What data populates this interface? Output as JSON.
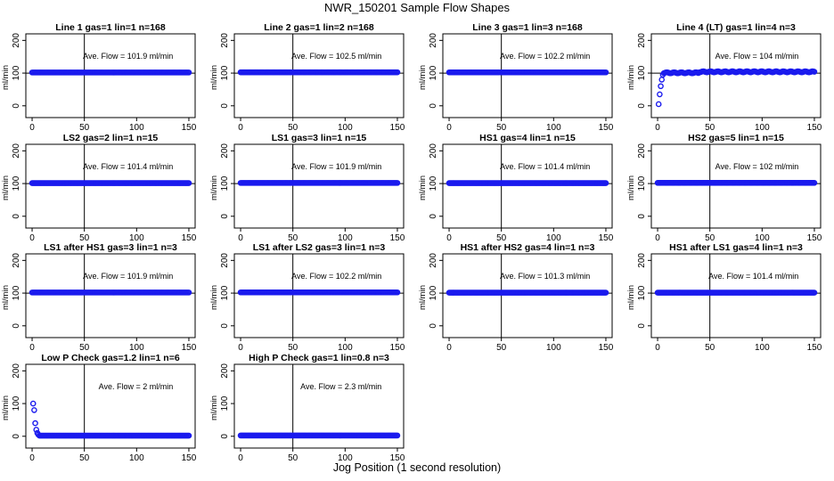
{
  "title": "NWR_150201  Sample Flow Shapes",
  "xlabel": "Jog Position (1 second resolution)",
  "chart_data": [
    {
      "type": "scatter",
      "title": "Line 1 gas=1 lin=1 n=168",
      "annotation": "Ave. Flow = 101.9  ml/min",
      "ylabel": "ml/min",
      "xlim": [
        0,
        150
      ],
      "ylim": [
        0,
        200
      ],
      "xticks": [
        0,
        50,
        100,
        150
      ],
      "yticks": [
        0,
        100,
        200
      ],
      "vline": 50,
      "hline": 100,
      "shape": "flat",
      "level": 101.9
    },
    {
      "type": "scatter",
      "title": "Line 2 gas=1 lin=2 n=168",
      "annotation": "Ave. Flow = 102.5  ml/min",
      "ylabel": "ml/min",
      "xlim": [
        0,
        150
      ],
      "ylim": [
        0,
        200
      ],
      "xticks": [
        0,
        50,
        100,
        150
      ],
      "yticks": [
        0,
        100,
        200
      ],
      "vline": 50,
      "hline": 100,
      "shape": "flat",
      "level": 102.5
    },
    {
      "type": "scatter",
      "title": "Line 3 gas=1 lin=3 n=168",
      "annotation": "Ave. Flow = 102.2  ml/min",
      "ylabel": "ml/min",
      "xlim": [
        0,
        150
      ],
      "ylim": [
        0,
        200
      ],
      "xticks": [
        0,
        50,
        100,
        150
      ],
      "yticks": [
        0,
        100,
        200
      ],
      "vline": 50,
      "hline": 100,
      "shape": "flat",
      "level": 102.2
    },
    {
      "type": "scatter",
      "title": "Line 4 (LT) gas=1 lin=4 n=3",
      "annotation": "Ave. Flow = 104  ml/min",
      "ylabel": "ml/min",
      "xlim": [
        0,
        150
      ],
      "ylim": [
        0,
        200
      ],
      "xticks": [
        0,
        50,
        100,
        150
      ],
      "yticks": [
        0,
        100,
        200
      ],
      "vline": 50,
      "hline": 100,
      "shape": "rise",
      "level": 104,
      "start": [
        [
          1,
          5
        ],
        [
          2,
          35
        ],
        [
          3,
          60
        ],
        [
          4,
          80
        ],
        [
          5,
          95
        ]
      ]
    },
    {
      "type": "scatter",
      "title": "LS2 gas=2 lin=1 n=15",
      "annotation": "Ave. Flow = 101.4  ml/min",
      "ylabel": "ml/min",
      "xlim": [
        0,
        150
      ],
      "ylim": [
        0,
        200
      ],
      "xticks": [
        0,
        50,
        100,
        150
      ],
      "yticks": [
        0,
        100,
        200
      ],
      "vline": 50,
      "hline": 100,
      "shape": "flat",
      "level": 101.4
    },
    {
      "type": "scatter",
      "title": "LS1 gas=3 lin=1 n=15",
      "annotation": "Ave. Flow = 101.9  ml/min",
      "ylabel": "ml/min",
      "xlim": [
        0,
        150
      ],
      "ylim": [
        0,
        200
      ],
      "xticks": [
        0,
        50,
        100,
        150
      ],
      "yticks": [
        0,
        100,
        200
      ],
      "vline": 50,
      "hline": 100,
      "shape": "flat",
      "level": 101.9
    },
    {
      "type": "scatter",
      "title": "HS1 gas=4 lin=1 n=15",
      "annotation": "Ave. Flow = 101.4  ml/min",
      "ylabel": "ml/min",
      "xlim": [
        0,
        150
      ],
      "ylim": [
        0,
        200
      ],
      "xticks": [
        0,
        50,
        100,
        150
      ],
      "yticks": [
        0,
        100,
        200
      ],
      "vline": 50,
      "hline": 100,
      "shape": "flat",
      "level": 101.4
    },
    {
      "type": "scatter",
      "title": "HS2 gas=5 lin=1 n=15",
      "annotation": "Ave. Flow = 102  ml/min",
      "ylabel": "ml/min",
      "xlim": [
        0,
        150
      ],
      "ylim": [
        0,
        200
      ],
      "xticks": [
        0,
        50,
        100,
        150
      ],
      "yticks": [
        0,
        100,
        200
      ],
      "vline": 50,
      "hline": 100,
      "shape": "flat",
      "level": 102
    },
    {
      "type": "scatter",
      "title": "LS1 after HS1 gas=3 lin=1 n=3",
      "annotation": "Ave. Flow = 101.9  ml/min",
      "ylabel": "ml/min",
      "xlim": [
        0,
        150
      ],
      "ylim": [
        0,
        200
      ],
      "xticks": [
        0,
        50,
        100,
        150
      ],
      "yticks": [
        0,
        100,
        200
      ],
      "vline": 50,
      "hline": 100,
      "shape": "flat",
      "level": 101.9
    },
    {
      "type": "scatter",
      "title": "LS1 after LS2 gas=3 lin=1 n=3",
      "annotation": "Ave. Flow = 102.2  ml/min",
      "ylabel": "ml/min",
      "xlim": [
        0,
        150
      ],
      "ylim": [
        0,
        200
      ],
      "xticks": [
        0,
        50,
        100,
        150
      ],
      "yticks": [
        0,
        100,
        200
      ],
      "vline": 50,
      "hline": 100,
      "shape": "flat",
      "level": 102.2
    },
    {
      "type": "scatter",
      "title": "HS1 after HS2 gas=4 lin=1 n=3",
      "annotation": "Ave. Flow = 101.3  ml/min",
      "ylabel": "ml/min",
      "xlim": [
        0,
        150
      ],
      "ylim": [
        0,
        200
      ],
      "xticks": [
        0,
        50,
        100,
        150
      ],
      "yticks": [
        0,
        100,
        200
      ],
      "vline": 50,
      "hline": 100,
      "shape": "flat",
      "level": 101.3
    },
    {
      "type": "scatter",
      "title": "HS1 after LS1 gas=4 lin=1 n=3",
      "annotation": "Ave. Flow = 101.4  ml/min",
      "ylabel": "ml/min",
      "xlim": [
        0,
        150
      ],
      "ylim": [
        0,
        200
      ],
      "xticks": [
        0,
        50,
        100,
        150
      ],
      "yticks": [
        0,
        100,
        200
      ],
      "vline": 50,
      "hline": 100,
      "shape": "flat",
      "level": 101.4
    },
    {
      "type": "scatter",
      "title": "Low P Check gas=1.2 lin=1 n=6",
      "annotation": "Ave. Flow = 2  ml/min",
      "ylabel": "ml/min",
      "xlim": [
        0,
        150
      ],
      "ylim": [
        0,
        200
      ],
      "xticks": [
        0,
        50,
        100,
        150
      ],
      "yticks": [
        0,
        100,
        200
      ],
      "vline": 50,
      "hline": null,
      "shape": "decay",
      "level": 2,
      "start": [
        [
          1,
          100
        ],
        [
          2,
          80
        ],
        [
          3,
          40
        ],
        [
          4,
          20
        ],
        [
          5,
          10
        ],
        [
          6,
          5
        ]
      ]
    },
    {
      "type": "scatter",
      "title": "High P Check gas=1 lin=0.8 n=3",
      "annotation": "Ave. Flow = 2.3  ml/min",
      "ylabel": "ml/min",
      "xlim": [
        0,
        150
      ],
      "ylim": [
        0,
        200
      ],
      "xticks": [
        0,
        50,
        100,
        150
      ],
      "yticks": [
        0,
        100,
        200
      ],
      "vline": 50,
      "hline": null,
      "shape": "flat",
      "level": 2.3
    }
  ],
  "colors": {
    "points": "#1a1aee",
    "axes": "#000000",
    "text": "#000000"
  }
}
